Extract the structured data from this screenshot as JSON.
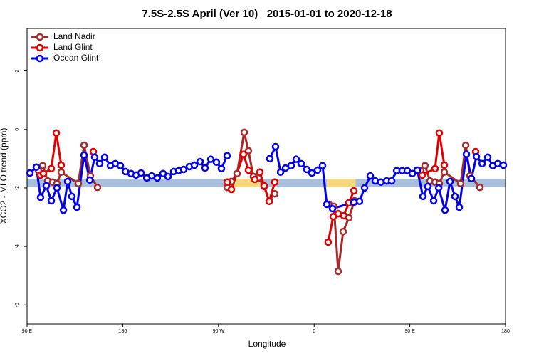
{
  "chart_data": {
    "type": "line",
    "title": "7.5S-2.5S April (Ver 10)   2015-01-01 to 2020-12-18",
    "x_label": "Longitude",
    "y_label": "XCO2 - MLO trend (ppm)",
    "xlim": [
      90,
      540
    ],
    "ylim": [
      -6.65,
      3.45
    ],
    "xticks": [
      {
        "value": 90,
        "label": "90 E"
      },
      180,
      {
        "value": 270,
        "label": "90 W"
      },
      {
        "value": 360,
        "label": "0"
      },
      {
        "value": 450,
        "label": "90 E"
      },
      {
        "value": 540,
        "label": "180"
      }
    ],
    "yticks": [
      -6,
      -4,
      -2,
      0,
      2
    ],
    "legend": "top-left",
    "band": {
      "y": -1.83,
      "segments": [
        {
          "x": [
            90,
            282
          ],
          "color": "#a9c0dd"
        },
        {
          "x": [
            282,
            309
          ],
          "color": "#f6d77c"
        },
        {
          "x": [
            309,
            372
          ],
          "color": "#a9c0dd"
        },
        {
          "x": [
            372,
            399
          ],
          "color": "#f6d77c"
        },
        {
          "x": [
            399,
            540
          ],
          "color": "#a9c0dd"
        }
      ]
    },
    "series": [
      {
        "name": "Land Nadir",
        "color": "#a52a2a",
        "x": [
          100.7,
          104.7,
          109.4,
          114.1,
          118.1,
          122.1,
          138.2,
          143.6,
          149.6,
          156.3,
          null,
          278.2,
          282.2,
          287.5,
          294.2,
          298.2,
          302.9,
          307.6,
          313.0,
          317.7,
          323.0,
          null,
          373.9,
          378.6,
          382.6,
          387.3,
          392.7,
          398.0,
          null,
          460.3,
          464.3,
          469.0,
          473.7,
          477.7,
          482.4,
          497.8,
          502.6,
          506.5,
          515.9
        ],
        "values": [
          -1.41,
          -1.24,
          -1.76,
          -1.8,
          -1.85,
          -1.46,
          -1.85,
          -0.54,
          -1.59,
          -1.98,
          null,
          -1.98,
          -1.78,
          -1.51,
          -0.1,
          -0.73,
          -1.61,
          -1.66,
          -1.95,
          -2.44,
          -2.2,
          null,
          -2.56,
          -2.63,
          -4.85,
          -3.49,
          -3.02,
          -2.44,
          null,
          -1.41,
          -1.24,
          -1.76,
          -1.8,
          -1.85,
          -1.46,
          -1.85,
          -0.54,
          -1.59,
          -1.98
        ]
      },
      {
        "name": "Land Glint",
        "color": "#e00000",
        "x": [
          102.7,
          105.4,
          112.8,
          117.5,
          122.1,
          null,
          152.3,
          null,
          278.2,
          282.2,
          293.6,
          298.2,
          304.3,
          309.0,
          313.0,
          317.7,
          323.0,
          null,
          373.2,
          377.9,
          382.6,
          387.9,
          392.7,
          397.4,
          null,
          461.6,
          473.7,
          477.7,
          482.4,
          null,
          511.9
        ],
        "values": [
          -1.56,
          -1.51,
          -1.34,
          -0.12,
          -1.22,
          null,
          -0.76,
          null,
          -1.8,
          -2.05,
          -0.85,
          -1.39,
          -1.71,
          -1.46,
          -1.93,
          -2.46,
          -1.8,
          null,
          -3.85,
          -2.98,
          -2.88,
          -2.95,
          -2.51,
          -2.1,
          null,
          -1.56,
          -1.34,
          -0.12,
          -1.22,
          null,
          -0.76
        ]
      },
      {
        "name": "Ocean Glint",
        "color": "#0000ee",
        "x": [
          92.7,
          98.7,
          102.7,
          108.1,
          112.8,
          118.1,
          124.2,
          128.2,
          132.2,
          136.9,
          143.6,
          149.0,
          153.6,
          158.3,
          163.0,
          168.4,
          173.1,
          177.8,
          182.5,
          187.8,
          192.5,
          197.2,
          202.6,
          207.2,
          212.5,
          217.9,
          222.6,
          227.9,
          232.6,
          237.3,
          242.7,
          247.4,
          252.7,
          257.4,
          262.8,
          268.1,
          272.8,
          278.2,
          null,
          318.3,
          323.7,
          328.4,
          333.1,
          338.4,
          343.1,
          347.8,
          353.2,
          357.9,
          363.2,
          367.9,
          371.9,
          377.3,
          397.4,
          402.7,
          407.4,
          412.8,
          417.5,
          422.8,
          428.2,
          432.9,
          437.6,
          442.9,
          447.6,
          452.3,
          457.0,
          462.3,
          467.0,
          472.4,
          477.1,
          483.1,
          487.8,
          492.5,
          496.5,
          503.2,
          507.9,
          512.6,
          518.0,
          523.3,
          528.0,
          532.6,
          538.0
        ],
        "values": [
          -1.49,
          -1.29,
          -2.32,
          -1.93,
          -2.44,
          -2.0,
          -2.76,
          -1.78,
          -2.29,
          -2.66,
          -0.88,
          -1.73,
          -0.95,
          -1.17,
          -0.95,
          -1.24,
          -1.17,
          -1.24,
          -1.44,
          -1.51,
          -1.56,
          -1.49,
          -1.66,
          -1.59,
          -1.66,
          -1.51,
          -1.61,
          -1.44,
          -1.41,
          -1.37,
          -1.27,
          -1.22,
          -1.1,
          -1.32,
          -1.02,
          -1.12,
          -1.34,
          -0.9,
          null,
          -1.0,
          -0.59,
          -1.46,
          -1.32,
          -1.24,
          -1.02,
          -1.17,
          -1.37,
          -1.49,
          -1.39,
          -1.24,
          -2.56,
          -2.71,
          -2.49,
          -2.46,
          -2.0,
          -1.59,
          -1.76,
          -1.8,
          -1.76,
          -1.76,
          -1.41,
          -1.41,
          -1.41,
          -1.51,
          -1.39,
          -2.29,
          -1.95,
          -2.44,
          -2.0,
          -2.76,
          -1.78,
          -2.29,
          -2.66,
          -0.85,
          -1.68,
          -0.93,
          -1.17,
          -0.95,
          -1.24,
          -1.17,
          -1.22
        ]
      }
    ]
  }
}
